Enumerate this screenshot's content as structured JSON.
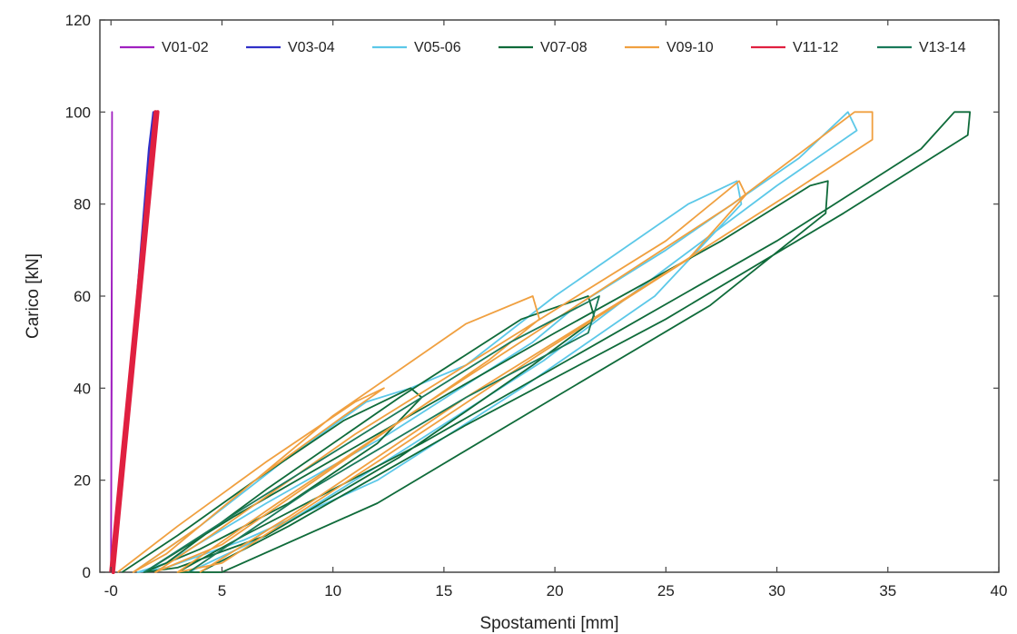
{
  "chart_data": {
    "type": "line",
    "xlabel": "Spostamenti [mm]",
    "ylabel": "Carico [kN]",
    "xlim": [
      -0.5,
      40
    ],
    "ylim": [
      0,
      120
    ],
    "x_ticks": [
      0,
      5,
      10,
      15,
      20,
      25,
      30,
      35,
      40
    ],
    "x_tick_labels": [
      "-0",
      "5",
      "10",
      "15",
      "20",
      "25",
      "30",
      "35",
      "40"
    ],
    "y_ticks": [
      0,
      20,
      40,
      60,
      80,
      100,
      120
    ],
    "y_tick_labels": [
      "0",
      "20",
      "40",
      "60",
      "80",
      "100",
      "120"
    ],
    "grid": false,
    "legend_position": "top",
    "series": [
      {
        "name": "V01-02",
        "color": "#a020c0",
        "x": [
          0,
          0.03,
          0.05,
          0.05,
          0.02,
          0.0
        ],
        "y": [
          0,
          40,
          100,
          98,
          40,
          0
        ]
      },
      {
        "name": "V03-04",
        "color": "#3030c8",
        "x": [
          0.0,
          0.8,
          1.6,
          1.8,
          1.9,
          1.7,
          1.0,
          0.3,
          0.1
        ],
        "y": [
          0,
          40,
          80,
          95,
          100,
          92,
          50,
          10,
          0
        ]
      },
      {
        "name": "V05-06",
        "color": "#5cc8e8",
        "x": [
          1.0,
          4.0,
          8.0,
          11.5,
          13.5,
          16.0,
          20.0,
          26.0,
          28.2,
          28.4,
          24.5,
          18.5,
          12.0,
          6.0,
          2.5,
          1.2,
          2.5,
          7.0,
          12.5,
          19.0,
          21.0,
          25.0,
          31.0,
          33.2,
          33.6,
          30.0,
          25.0,
          19.5,
          13.0,
          7.0,
          3.5
        ],
        "y": [
          0,
          10,
          25,
          37,
          40,
          45,
          60,
          80,
          85,
          80,
          60,
          40,
          20,
          7,
          1,
          0,
          2,
          15,
          30,
          50,
          58,
          70,
          90,
          100,
          96,
          84,
          66,
          46,
          26,
          8,
          0
        ]
      },
      {
        "name": "V07-08",
        "color": "#0f6b3a",
        "x": [
          0.5,
          3.0,
          6.5,
          10.5,
          13.5,
          14.0,
          12.0,
          8.0,
          4.0,
          1.5,
          2.5,
          7.0,
          13.0,
          18.5,
          21.5,
          21.8,
          19.0,
          13.0,
          7.0,
          3.0,
          1.5,
          5.5,
          12.0,
          20.0,
          27.5,
          31.5,
          32.3,
          32.2,
          27.0,
          20.0,
          12.0,
          5.0,
          3.0,
          6.0,
          14.0,
          22.0,
          30.0,
          36.5,
          38.0,
          38.7,
          38.6,
          33.0,
          25.0,
          16.0,
          8.0,
          4.0
        ],
        "y": [
          0,
          8,
          20,
          33,
          40,
          38,
          28,
          15,
          5,
          0,
          2,
          18,
          38,
          55,
          60,
          55,
          45,
          25,
          8,
          1,
          0,
          12,
          30,
          52,
          72,
          84,
          85,
          78,
          58,
          38,
          15,
          0,
          0,
          8,
          28,
          50,
          72,
          92,
          100,
          100,
          95,
          78,
          55,
          32,
          10,
          0
        ]
      },
      {
        "name": "V09-10",
        "color": "#f0a040",
        "x": [
          0.3,
          3.0,
          7.0,
          11.0,
          12.3,
          10.5,
          6.5,
          2.5,
          1.0,
          4.0,
          10.0,
          16.0,
          19.0,
          19.3,
          17.0,
          11.0,
          5.0,
          2.0,
          4.5,
          11.0,
          19.0,
          25.0,
          28.3,
          28.6,
          26.0,
          19.5,
          12.0,
          5.0,
          3.0,
          7.5,
          14.0,
          21.0,
          28.0,
          33.5,
          34.3,
          34.3,
          30.5,
          24.0,
          16.0,
          8.0,
          4.0
        ],
        "y": [
          0,
          10,
          24,
          37,
          40,
          34,
          20,
          4,
          0,
          10,
          34,
          54,
          60,
          55,
          46,
          26,
          6,
          0,
          8,
          30,
          54,
          72,
          85,
          82,
          68,
          48,
          24,
          2,
          0,
          15,
          36,
          58,
          80,
          100,
          100,
          94,
          82,
          62,
          38,
          12,
          0
        ]
      },
      {
        "name": "V11-12",
        "color": "#e02040",
        "x": [
          0.0,
          0.5,
          1.0,
          1.5,
          1.9,
          2.0,
          1.8,
          1.2,
          0.6,
          0.1,
          0.3,
          0.9,
          1.5,
          2.0,
          2.1,
          1.7,
          1.0,
          0.4,
          0.0
        ],
        "y": [
          0,
          25,
          50,
          75,
          95,
          100,
          90,
          60,
          30,
          0,
          10,
          40,
          70,
          95,
          100,
          80,
          45,
          15,
          0
        ]
      },
      {
        "name": "V13-14",
        "color": "#1a7a5a",
        "x": [
          1.5,
          6.0,
          12.0,
          18.0,
          22.0,
          21.5,
          16.0,
          9.0,
          3.5
        ],
        "y": [
          0,
          14,
          32,
          50,
          60,
          52,
          38,
          18,
          0
        ]
      }
    ]
  }
}
